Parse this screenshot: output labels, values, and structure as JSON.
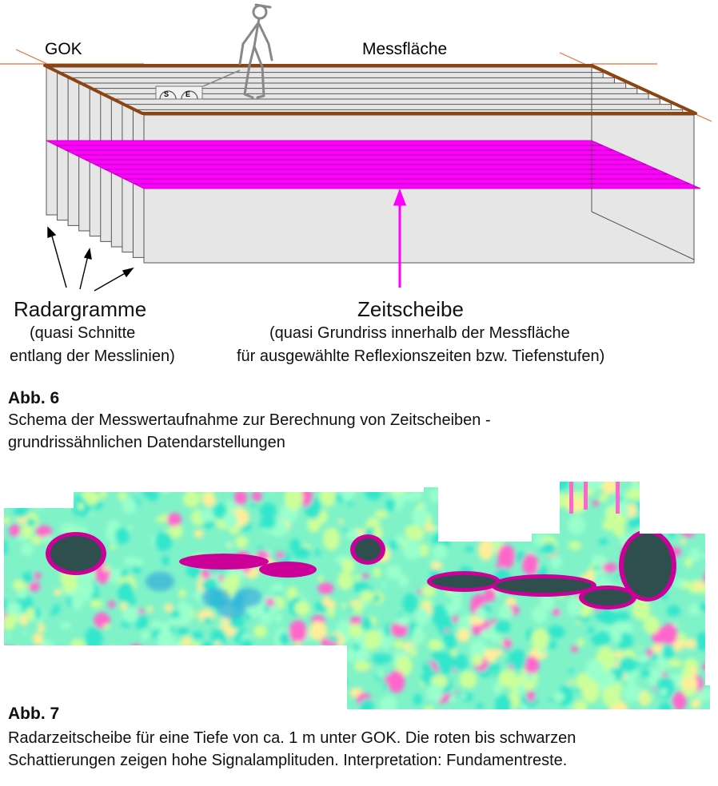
{
  "diagram": {
    "gok_label": "GOK",
    "messflaeche_label": "Messfläche",
    "sender_label": "S",
    "empfaenger_label": "E",
    "radargramme_label": "Radargramme",
    "radargramme_sub1": "(quasi Schnitte",
    "radargramme_sub2": "entlang der Messlinien)",
    "zeitscheibe_label": "Zeitscheibe",
    "zeitscheibe_sub1": "(quasi Grundriss innerhalb der Messfläche",
    "zeitscheibe_sub2": "für ausgewählte Reflexionszeiten bzw. Tiefenstufen)",
    "colors": {
      "surface_line": "#8B4513",
      "slice": "#ff00ff",
      "panel_fill": "#e6e6e6",
      "axis_line": "#e8703a",
      "person": "#888888"
    }
  },
  "abb6": {
    "title": "Abb. 6",
    "caption_line1": "Schema der Messwertaufnahme zur Berechnung von Zeitscheiben -",
    "caption_line2": "grundrissähnlichen Datendarstellungen"
  },
  "abb7": {
    "title": "Abb. 7",
    "caption_line1": "Radarzeitscheibe für eine Tiefe von ca. 1 m unter GOK. Die roten bis schwarzen",
    "caption_line2": "Schattierungen zeigen hohe Signalamplituden. Interpretation: Fundamentreste.",
    "colors": {
      "low": "#33e6cc",
      "low_mid": "#99ffcc",
      "mid": "#ccff99",
      "mid_high": "#ffee99",
      "high": "#ff66cc",
      "very_high": "#cc0099",
      "max": "#2f4f4f",
      "deep_low": "#33aadd"
    }
  }
}
